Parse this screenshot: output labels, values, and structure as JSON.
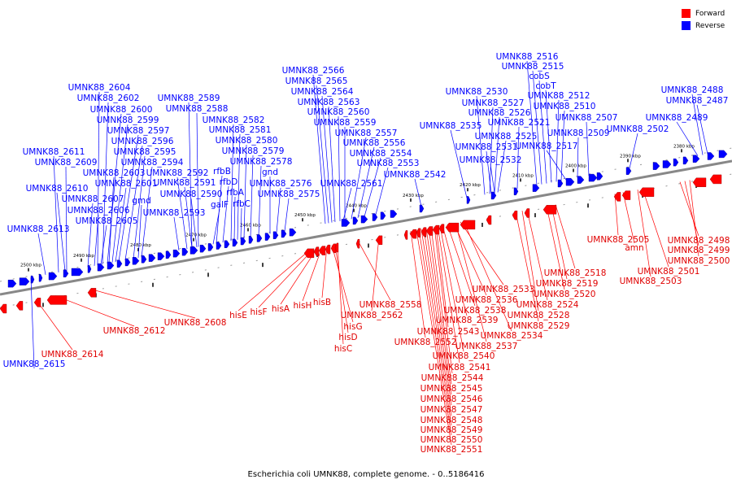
{
  "caption": "Escherichia coli UMNK88, complete genome. - 0..5186416",
  "legend": [
    {
      "label": "Forward",
      "color": "#ff0000"
    },
    {
      "label": "Reverse",
      "color": "#0000ff"
    }
  ],
  "colors": {
    "forward": "#ff0000",
    "reverse": "#0000ff",
    "axis": "#777777"
  },
  "ticks": [
    "2500 kbp",
    "2490 kbp",
    "2480 kbp",
    "2470 kbp",
    "2460 kbp",
    "2450 kbp",
    "2440 kbp",
    "2430 kbp",
    "2420 kbp",
    "2410 kbp",
    "2400 kbp",
    "2390 kbp",
    "2380 kbp"
  ],
  "reverse_labels": [
    "UMNK88_2566",
    "UMNK88_2565",
    "UMNK88_2564",
    "UMNK88_2563",
    "UMNK88_2560",
    "UMNK88_2559",
    "UMNK88_2557",
    "UMNK88_2556",
    "UMNK88_2554",
    "UMNK88_2553",
    "UMNK88_2542",
    "UMNK88_2561",
    "UMNK88_2604",
    "UMNK88_2602",
    "UMNK88_2600",
    "UMNK88_2599",
    "UMNK88_2597",
    "UMNK88_2596",
    "UMNK88_2595",
    "UMNK88_2594",
    "UMNK88_2603",
    "UMNK88_2601",
    "gmd",
    "UMNK88_2593",
    "UMNK88_2611",
    "UMNK88_2609",
    "UMNK88_2610",
    "UMNK88_2607",
    "UMNK88_2606",
    "UMNK88_2605",
    "UMNK88_2613",
    "UMNK88_2589",
    "UMNK88_2588",
    "UMNK88_2592",
    "UMNK88_2591",
    "UMNK88_2590",
    "UMNK88_2582",
    "UMNK88_2581",
    "UMNK88_2580",
    "UMNK88_2579",
    "UMNK88_2578",
    "rfbB",
    "rfbD",
    "galF",
    "rfbA",
    "rfbC",
    "gnd",
    "UMNK88_2576",
    "UMNK88_2575",
    "UMNK88_2516",
    "UMNK88_2515",
    "cobS",
    "cobT",
    "UMNK88_2512",
    "UMNK88_2510",
    "UMNK88_2507",
    "UMNK88_2509",
    "UMNK88_2530",
    "UMNK88_2527",
    "UMNK88_2526",
    "UMNK88_2521",
    "UMNK88_2525",
    "UMNK88_2531",
    "UMNK88_2532",
    "UMNK88_2535",
    "UMNK88_2517",
    "UMNK88_2502",
    "UMNK88_2488",
    "UMNK88_2487",
    "UMNK88_2489",
    "UMNK88_2615"
  ],
  "forward_labels": [
    "hisE",
    "hisF",
    "hisA",
    "hisH",
    "hisB",
    "hisG",
    "hisD",
    "hisC",
    "UMNK88_2558",
    "UMNK88_2562",
    "UMNK88_2608",
    "UMNK88_2612",
    "UMNK88_2614",
    "UMNK88_2533",
    "UMNK88_2536",
    "UMNK88_2538",
    "UMNK88_2539",
    "UMNK88_2543",
    "UMNK88_2534",
    "UMNK88_2552",
    "UMNK88_2537",
    "UMNK88_2540",
    "UMNK88_2541",
    "UMNK88_2544",
    "UMNK88_2545",
    "UMNK88_2546",
    "UMNK88_2547",
    "UMNK88_2548",
    "UMNK88_2549",
    "UMNK88_2550",
    "UMNK88_2551",
    "UMNK88_2518",
    "UMNK88_2519",
    "UMNK88_2520",
    "UMNK88_2524",
    "UMNK88_2528",
    "UMNK88_2529",
    "UMNK88_2505",
    "amn",
    "UMNK88_2501",
    "UMNK88_2503",
    "UMNK88_2498",
    "UMNK88_2499",
    "UMNK88_2500"
  ]
}
